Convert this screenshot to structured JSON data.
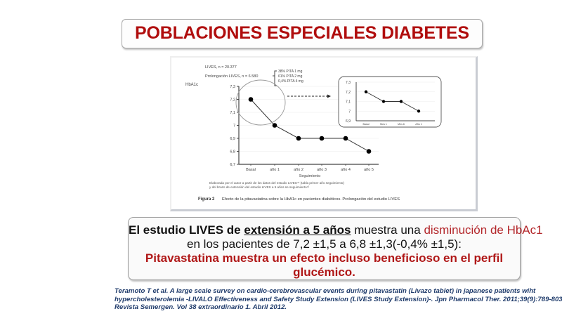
{
  "title": "POBLACIONES ESPECIALES DIABETES",
  "figure": {
    "header_line1": "LIVES, n = 20.377",
    "header_line2": "Prolongación LIVES, n = 6.580",
    "dose_groups": [
      "38% PITA 1 mg",
      "61% PITA 2 mg",
      "0,4% PITA 4 mg"
    ],
    "note_line1": "Elaborada por el autor a partir de los datos del estudio LIVES⁴¹ (tabla primer año seguimiento)",
    "note_line2": "y del brazo de extensión del estudio LIVES a 5 años se seguimiento⁴²",
    "caption_label": "Figura 2",
    "caption_text": "Efecto de la pitavastatina sobre la HbA1c en pacientes diabéticos. Prolongación del estudio LIVES"
  },
  "chart_data": [
    {
      "type": "line",
      "title": "",
      "ylabel": "HbA1c",
      "xlabel": "Seguimiento",
      "categories": [
        "Basal",
        "año 1",
        "año 2",
        "año 3",
        "año 4",
        "año 5"
      ],
      "values": [
        7.2,
        7.0,
        6.9,
        6.9,
        6.9,
        6.8
      ],
      "ylim": [
        6.7,
        7.3
      ],
      "yticks": [
        "7,3",
        "7,2",
        "7,1",
        "7",
        "6,9",
        "6,8",
        "6,7"
      ],
      "grid": true,
      "annotations": [
        "circle around Basal–año 1 segment with dashed arrow to inset"
      ]
    },
    {
      "type": "line",
      "title": "inset",
      "ylabel": "",
      "xlabel": "",
      "categories": [
        "Basal",
        "Mes 1",
        "Mes 6",
        "Año 1"
      ],
      "values": [
        7.2,
        7.1,
        7.1,
        7.0
      ],
      "ylim": [
        6.9,
        7.3
      ],
      "yticks": [
        "7,3",
        "7,2",
        "7,1",
        "7",
        "6,9"
      ],
      "grid": true
    }
  ],
  "summary": {
    "line1_bold": "El estudio LIVES de ",
    "line1_underlined": "extensión a 5 años",
    "line1_normal": " muestra una ",
    "line1_red": "disminución de HbAc1",
    "line2": "en los pacientes de 7,2 ±1,5 a 6,8 ±1,3(-0,4% ±1,5):",
    "line3": "Pitavastatina muestra un efecto incluso beneficioso en el perfil",
    "line4": "glucémico."
  },
  "reference": {
    "line1": "Teramoto T et al. A large scale survey on cardio-cerebrovascular events during pitavastatin (Livazo tablet) in japanese patients wiht",
    "line2": "hypercholesterolemia -LIVALO Effectiveness and Safety Study Extension (LIVES Study Extension)-. Jpn Pharmacol Ther. 2011;39(9):789-803..",
    "line3": "Revista Semergen. Vol 38 extraordinario 1. Abril 2012."
  },
  "colors": {
    "title_red": "#b00d0d",
    "highlight_red": "#b3262a",
    "reference_blue": "#1f3b6b"
  }
}
